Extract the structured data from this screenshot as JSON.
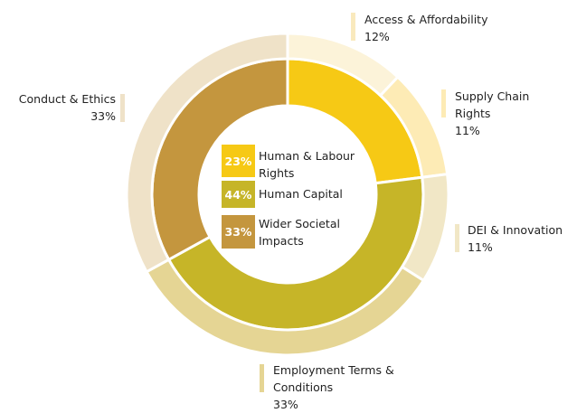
{
  "chart_data": {
    "type": "donut",
    "rings": [
      {
        "categories": [
          "Human & Labour Rights",
          "Human Capital",
          "Wider Societal Impacts"
        ],
        "values": [
          23,
          44,
          33
        ],
        "value_labels": [
          "23%",
          "44%",
          "33%"
        ],
        "colors": [
          "#f6c915",
          "#c6b528",
          "#c4963e"
        ]
      },
      {
        "categories": [
          "Access & Affordability",
          "Supply Chain Rights",
          "DEI & Innovation",
          "Employment Terms & Conditions",
          "Conduct & Ethics"
        ],
        "values": [
          12,
          11,
          11,
          33,
          33
        ],
        "value_labels": [
          "12%",
          "11%",
          "11%",
          "33%",
          "33%"
        ],
        "colors": [
          "#fcf3d9",
          "#fdebb5",
          "#f1e7c6",
          "#e5d594",
          "#efe2c8"
        ]
      }
    ]
  }
}
